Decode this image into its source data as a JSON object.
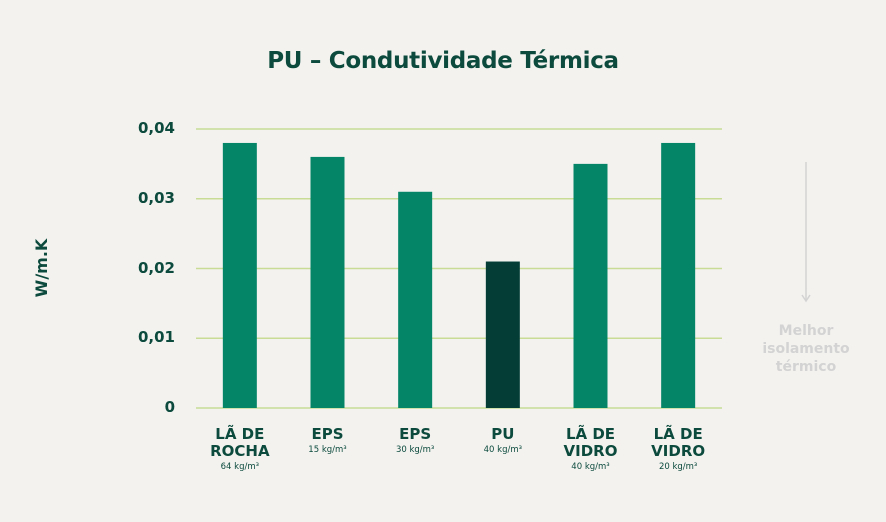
{
  "chart_data": {
    "type": "bar",
    "title": "PU  – Condutividade Térmica",
    "ylabel": "W/m.K",
    "xlabel": "",
    "ylim": [
      0,
      0.04
    ],
    "yticks": [
      "0",
      "0,01",
      "0,02",
      "0,03",
      "0,04"
    ],
    "grid": true,
    "categories": [
      "LÃ DE\nROCHA",
      "EPS",
      "EPS",
      "PU",
      "LÃ DE\nVIDRO",
      "LÃ DE\nVIDRO"
    ],
    "subcategories": [
      "64 kg/m³",
      "15 kg/m³",
      "30 kg/m³",
      "40 kg/m³",
      "40 kg/m³",
      "20 kg/m³"
    ],
    "values": [
      0.038,
      0.036,
      0.031,
      0.021,
      0.035,
      0.038
    ],
    "highlight_index": 3,
    "annotation": "Melhor\nisolamento\ntérmico"
  },
  "colors": {
    "bar": "#058567",
    "bar_highlight": "#033d35",
    "grid": "#c8dc96",
    "text": "#0b4a3c",
    "annotation": "#d3d3d3"
  }
}
